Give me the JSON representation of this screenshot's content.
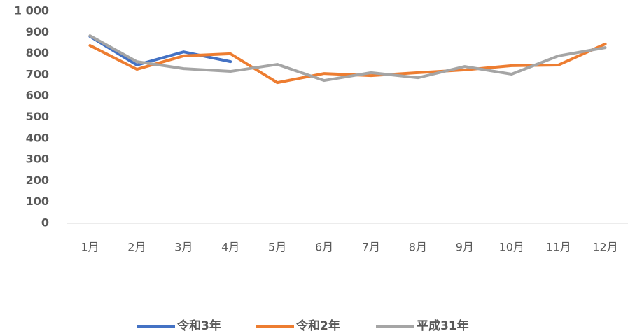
{
  "chart_data": {
    "type": "line",
    "categories": [
      "1月",
      "2月",
      "3月",
      "4月",
      "5月",
      "6月",
      "7月",
      "8月",
      "9月",
      "10月",
      "11月",
      "12月"
    ],
    "series": [
      {
        "name": "令和3年",
        "color": "#4472c4",
        "values": [
          881,
          746,
          808,
          762,
          null,
          null,
          null,
          null,
          null,
          null,
          null,
          null
        ]
      },
      {
        "name": "令和2年",
        "color": "#ed7d31",
        "values": [
          838,
          726,
          789,
          799,
          663,
          706,
          696,
          710,
          723,
          743,
          746,
          845
        ]
      },
      {
        "name": "平成31年",
        "color": "#a5a5a5",
        "values": [
          884,
          762,
          729,
          716,
          749,
          673,
          710,
          686,
          739,
          703,
          789,
          828
        ]
      }
    ],
    "ylim": [
      0,
      1000
    ],
    "yticks": [
      0,
      100,
      200,
      300,
      400,
      500,
      600,
      700,
      800,
      900,
      {
        "value": 1000,
        "label": "1 000"
      }
    ],
    "grid": false,
    "legend": "bottom"
  }
}
